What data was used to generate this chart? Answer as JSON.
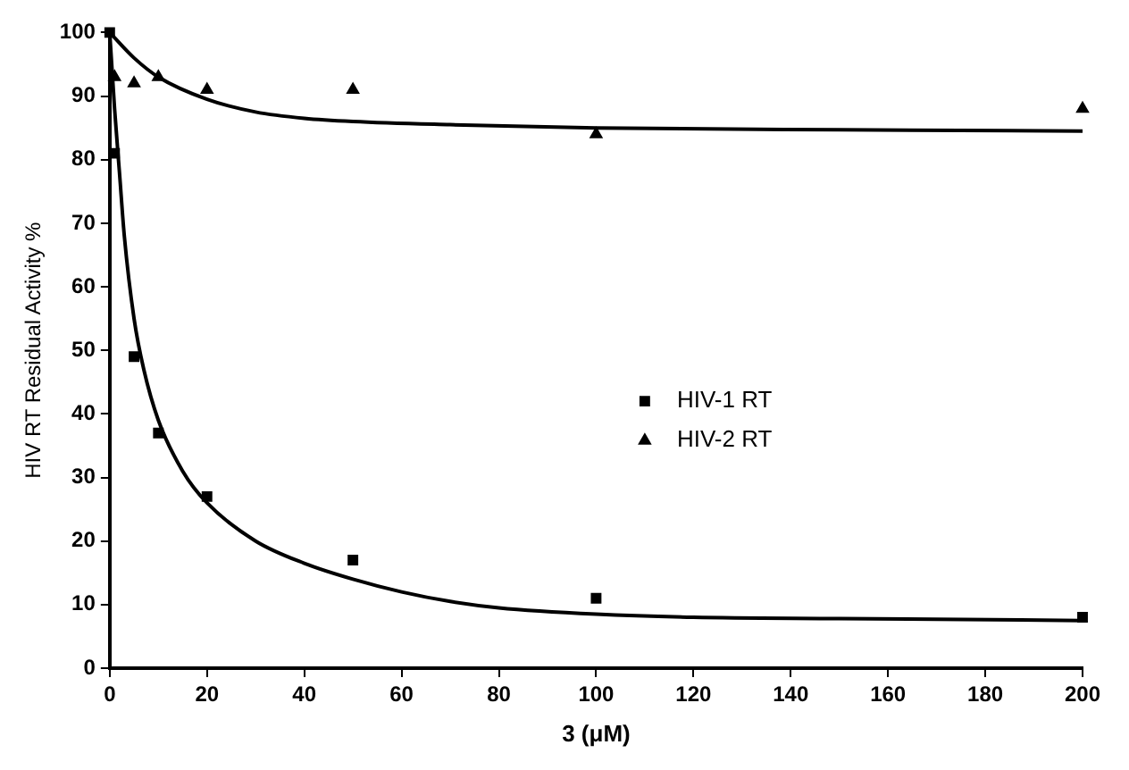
{
  "chart_data": {
    "type": "scatter",
    "xlabel": "3 (μM)",
    "ylabel": "HIV RT Residual Activity %",
    "xlim": [
      0,
      200
    ],
    "xticks": [
      0,
      20,
      40,
      60,
      80,
      100,
      120,
      140,
      160,
      180,
      200
    ],
    "ylim": [
      0,
      100
    ],
    "yticks": [
      0,
      10,
      20,
      30,
      40,
      50,
      60,
      70,
      80,
      90,
      100
    ],
    "grid": false,
    "legend": "right",
    "series": [
      {
        "name": "HIV-1 RT",
        "color": "#000000",
        "marker": "square",
        "x": [
          0,
          1,
          5,
          10,
          20,
          50,
          100,
          200
        ],
        "values": [
          100,
          81,
          49,
          37,
          27,
          17,
          11,
          8
        ]
      },
      {
        "name": "HIV-2 RT",
        "color": "#000000",
        "marker": "triangle",
        "x": [
          1,
          5,
          10,
          20,
          50,
          100,
          200
        ],
        "values": [
          93,
          92,
          93,
          91,
          91,
          84,
          88
        ]
      },
      {
        "type": "line",
        "color": "#000000",
        "marker": "none",
        "x": [
          0,
          1,
          2,
          3,
          5,
          7,
          10,
          15,
          20,
          30,
          40,
          50,
          60,
          70,
          80,
          100,
          120,
          150,
          200
        ],
        "values": [
          100,
          88,
          78,
          68,
          55,
          47,
          39,
          31,
          26,
          20,
          16.5,
          14,
          12,
          10.5,
          9.5,
          8.5,
          8,
          7.8,
          7.5
        ]
      },
      {
        "type": "line",
        "color": "#000000",
        "marker": "none",
        "x": [
          0,
          5,
          10,
          20,
          30,
          40,
          50,
          70,
          100,
          150,
          200
        ],
        "values": [
          100,
          96,
          93,
          89.5,
          87.5,
          86.5,
          86,
          85.5,
          85,
          84.7,
          84.5
        ]
      }
    ]
  }
}
